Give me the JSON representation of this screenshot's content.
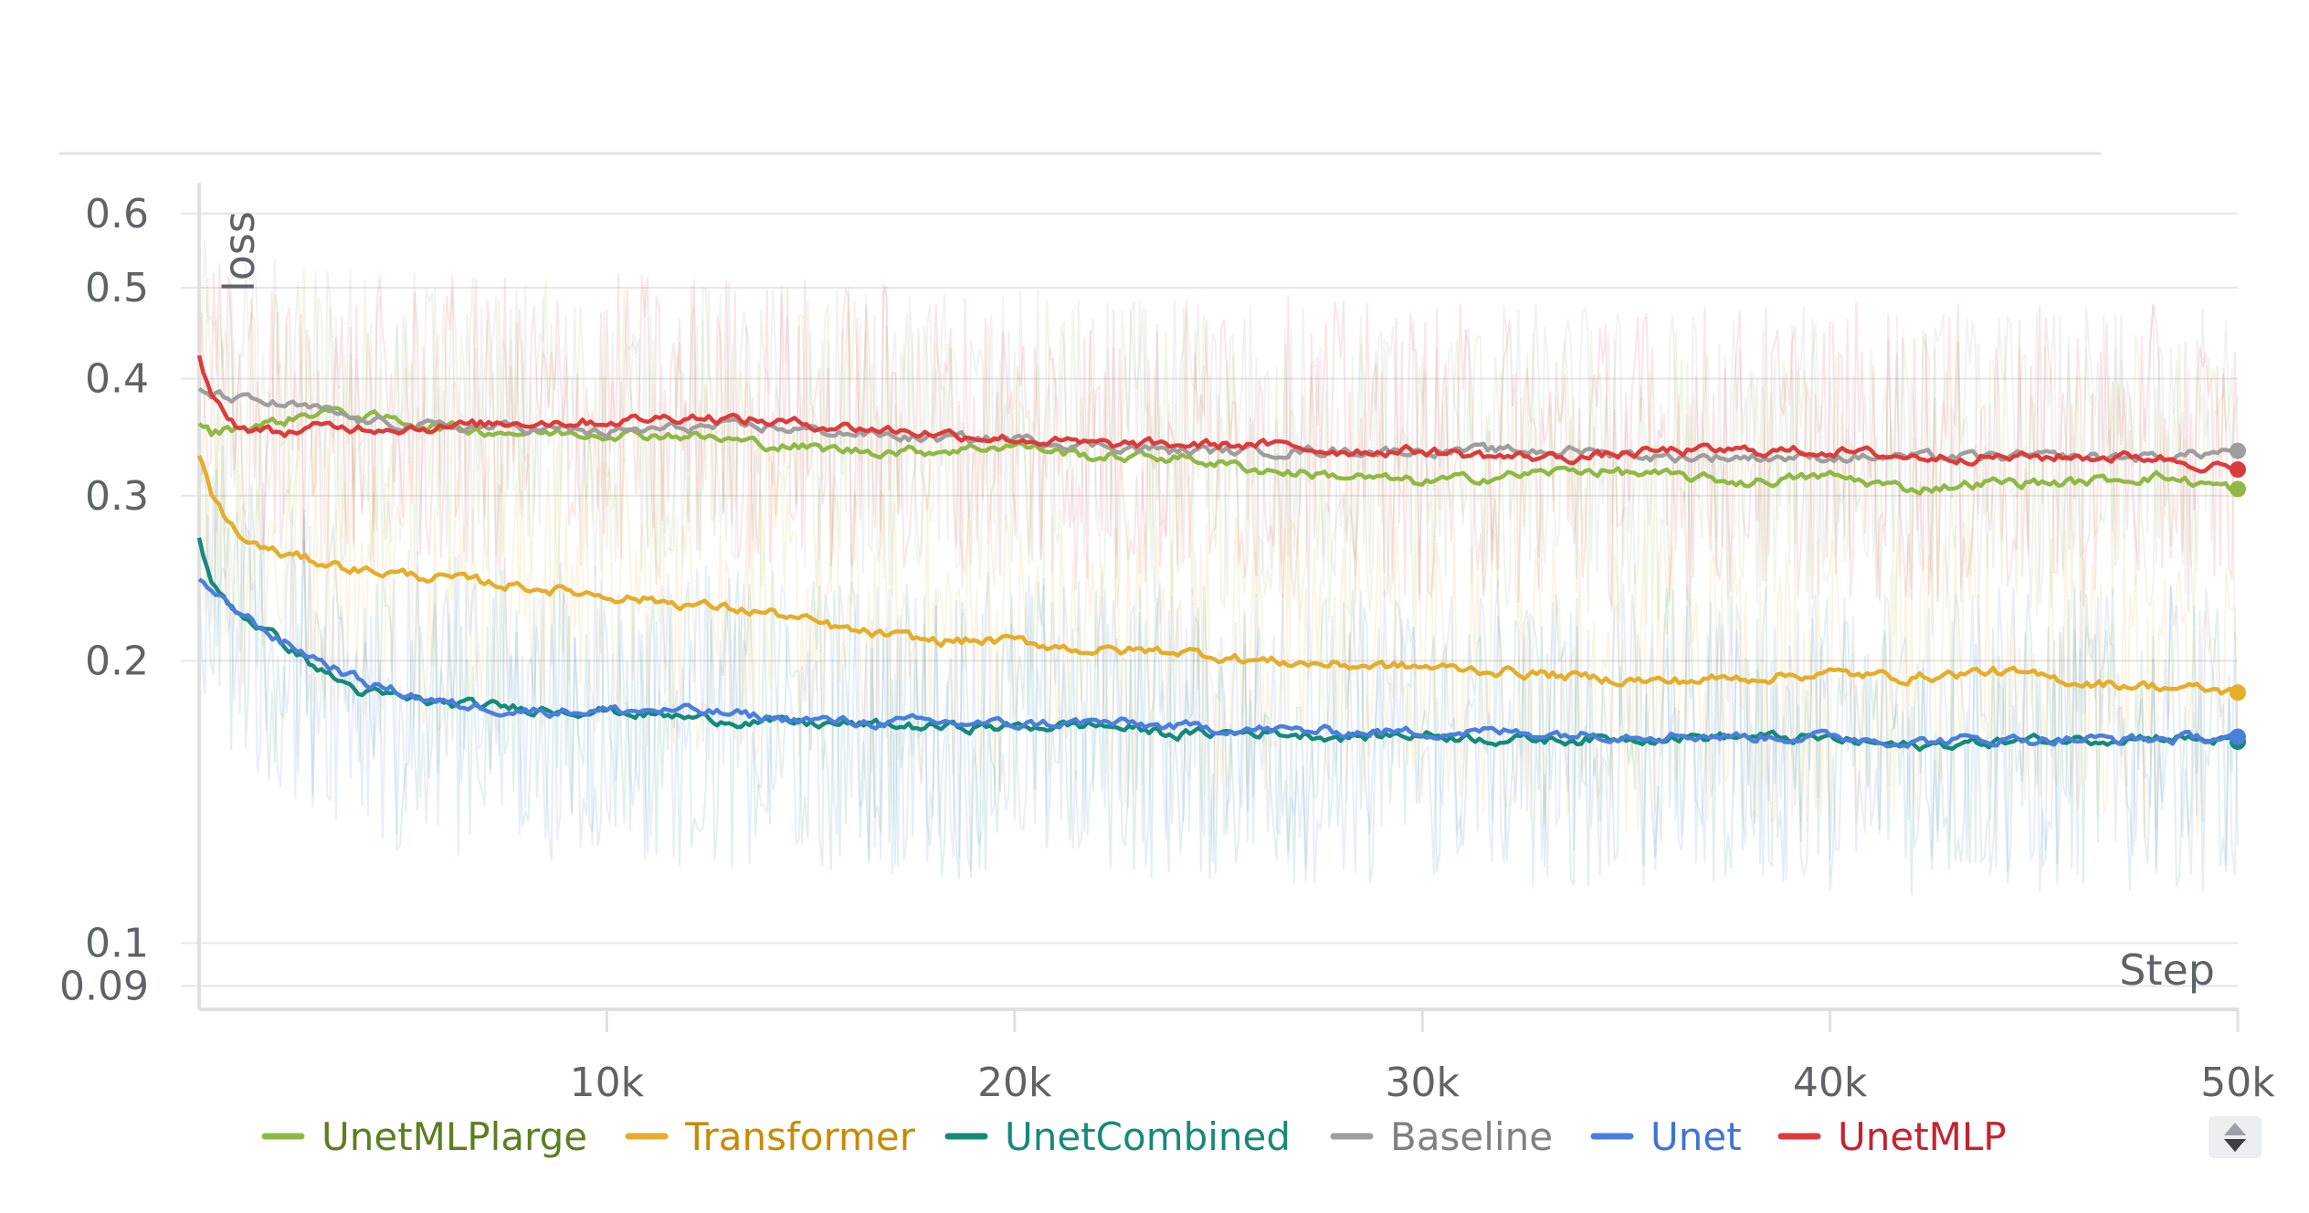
{
  "chart_data": {
    "type": "line",
    "title": "",
    "xlabel": "Step",
    "ylabel": "loss",
    "y_scale": "log",
    "ylim": [
      0.085,
      0.64
    ],
    "xlim": [
      0,
      50000
    ],
    "grid": true,
    "legend_position": "bottom",
    "x_ticks": [
      {
        "value": 10000,
        "label": "10k"
      },
      {
        "value": 20000,
        "label": "20k"
      },
      {
        "value": 30000,
        "label": "30k"
      },
      {
        "value": 40000,
        "label": "40k"
      },
      {
        "value": 50000,
        "label": "50k"
      }
    ],
    "y_ticks": [
      {
        "value": 0.6,
        "label": "0.6"
      },
      {
        "value": 0.5,
        "label": "0.5"
      },
      {
        "value": 0.4,
        "label": "0.4"
      },
      {
        "value": 0.3,
        "label": "0.3"
      },
      {
        "value": 0.2,
        "label": "0.2"
      },
      {
        "value": 0.1,
        "label": "0.1"
      },
      {
        "value": 0.09,
        "label": "0.09"
      }
    ],
    "x": [
      0,
      300,
      1000,
      2000,
      3000,
      4000,
      6000,
      8000,
      10000,
      12000,
      14000,
      16000,
      18000,
      20000,
      22000,
      24000,
      26000,
      28000,
      30000,
      32000,
      34000,
      36000,
      38000,
      40000,
      42000,
      44000,
      46000,
      48000,
      50000
    ],
    "series": [
      {
        "name": "UnetMLPlarge",
        "color": "#8fb944",
        "text_color": "#5b7f1f",
        "values": [
          0.36,
          0.35,
          0.355,
          0.36,
          0.37,
          0.365,
          0.355,
          0.35,
          0.35,
          0.348,
          0.34,
          0.335,
          0.335,
          0.34,
          0.33,
          0.33,
          0.32,
          0.315,
          0.31,
          0.315,
          0.32,
          0.315,
          0.31,
          0.315,
          0.305,
          0.31,
          0.31,
          0.315,
          0.305
        ]
      },
      {
        "name": "Transformer",
        "color": "#e5ad2a",
        "text_color": "#c98a00",
        "values": [
          0.33,
          0.3,
          0.27,
          0.26,
          0.255,
          0.25,
          0.245,
          0.24,
          0.235,
          0.23,
          0.225,
          0.215,
          0.21,
          0.21,
          0.205,
          0.205,
          0.2,
          0.198,
          0.197,
          0.195,
          0.192,
          0.19,
          0.192,
          0.194,
          0.192,
          0.195,
          0.19,
          0.188,
          0.185
        ]
      },
      {
        "name": "UnetCombined",
        "color": "#16897a",
        "text_color": "#16897a",
        "values": [
          0.27,
          0.24,
          0.225,
          0.21,
          0.195,
          0.185,
          0.18,
          0.178,
          0.177,
          0.174,
          0.172,
          0.171,
          0.17,
          0.17,
          0.171,
          0.167,
          0.168,
          0.166,
          0.167,
          0.165,
          0.165,
          0.166,
          0.166,
          0.165,
          0.162,
          0.164,
          0.165,
          0.166,
          0.164
        ]
      },
      {
        "name": "Baseline",
        "color": "#9e9e9e",
        "text_color": "#808080",
        "values": [
          0.39,
          0.385,
          0.38,
          0.375,
          0.37,
          0.36,
          0.355,
          0.355,
          0.35,
          0.355,
          0.355,
          0.35,
          0.345,
          0.345,
          0.34,
          0.335,
          0.335,
          0.335,
          0.335,
          0.335,
          0.335,
          0.33,
          0.33,
          0.33,
          0.33,
          0.33,
          0.33,
          0.33,
          0.335
        ]
      },
      {
        "name": "Unet",
        "color": "#4a7fdc",
        "text_color": "#3e74d6",
        "values": [
          0.245,
          0.235,
          0.225,
          0.21,
          0.2,
          0.19,
          0.18,
          0.177,
          0.177,
          0.177,
          0.174,
          0.172,
          0.172,
          0.171,
          0.172,
          0.17,
          0.169,
          0.168,
          0.168,
          0.168,
          0.167,
          0.167,
          0.166,
          0.166,
          0.164,
          0.165,
          0.165,
          0.165,
          0.166
        ]
      },
      {
        "name": "UnetMLP",
        "color": "#dd3b3b",
        "text_color": "#c4232f",
        "values": [
          0.42,
          0.38,
          0.355,
          0.35,
          0.355,
          0.355,
          0.355,
          0.36,
          0.36,
          0.365,
          0.36,
          0.355,
          0.35,
          0.345,
          0.34,
          0.34,
          0.34,
          0.335,
          0.335,
          0.33,
          0.33,
          0.335,
          0.335,
          0.335,
          0.33,
          0.33,
          0.33,
          0.33,
          0.32
        ]
      }
    ]
  },
  "legend": {
    "scroll_control": "scroll-arrows-icon"
  }
}
